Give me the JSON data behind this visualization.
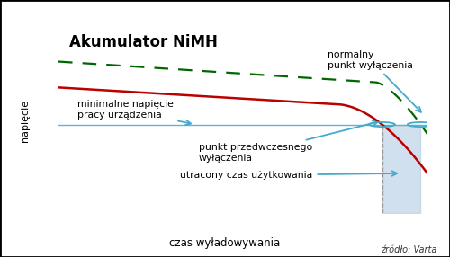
{
  "title": "Akumulator NiMH",
  "xlabel": "czas wyładowywania",
  "ylabel": "napięcie",
  "source": "źródło: Varta",
  "min_voltage_label": "minimalne napięcie\npracy urządzenia",
  "early_cutoff_label": "punkt przedwczesnego\nwyłączenia",
  "normal_cutoff_label": "normalny\npunkt wyłączenia",
  "lost_time_label": "utracony czas użytkowania",
  "red_line_color": "#bb0000",
  "green_line_color": "#006600",
  "min_voltage_line_color": "#55aacc",
  "annotation_color": "#44aacc",
  "shaded_color": "#aac8e0",
  "background_color": "#ffffff"
}
